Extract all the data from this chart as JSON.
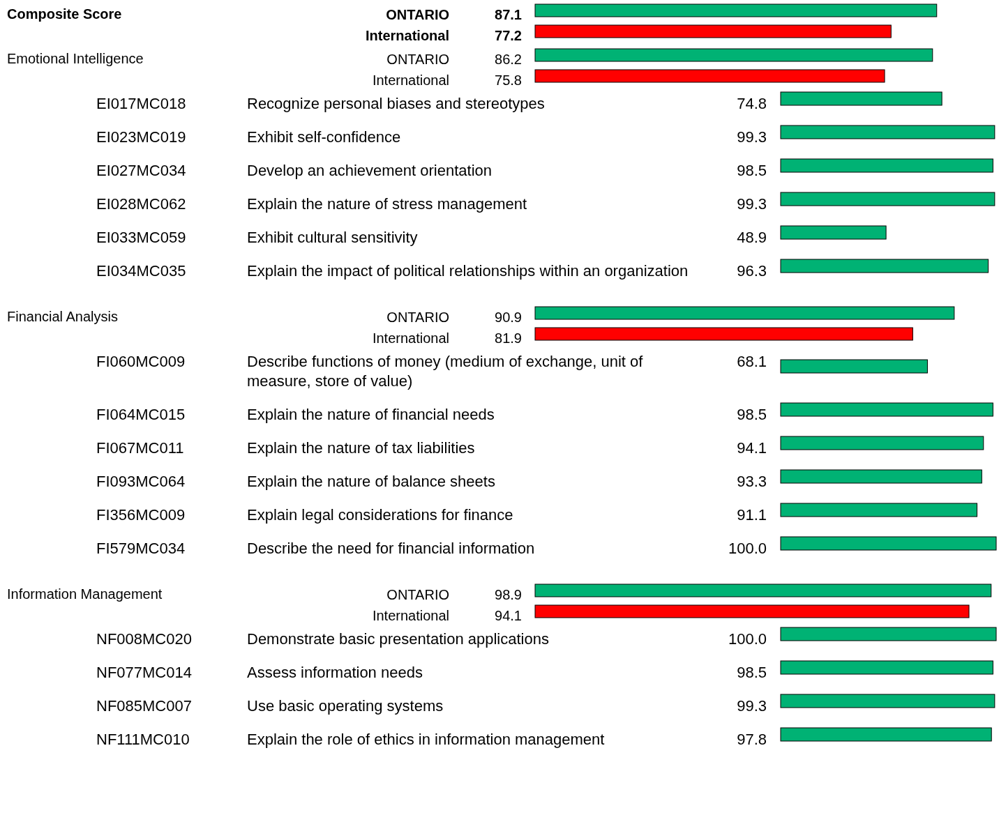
{
  "chart_data": [
    {
      "type": "bar",
      "orientation": "horizontal",
      "ylabel": "Composite Score",
      "categories": [
        "ONTARIO",
        "International"
      ],
      "values": [
        87.1,
        77.2
      ],
      "colors": [
        "#00b274",
        "#ff0000"
      ],
      "value_labels": [
        "87.1",
        "77.2"
      ]
    },
    {
      "type": "bar",
      "orientation": "horizontal",
      "ylabel": "Emotional Intelligence",
      "categories": [
        "ONTARIO",
        "International"
      ],
      "values": [
        86.2,
        75.8
      ],
      "colors": [
        "#00b274",
        "#ff0000"
      ],
      "value_labels": [
        "86.2",
        "75.8"
      ]
    },
    {
      "type": "bar",
      "orientation": "horizontal",
      "categories": [
        "Recognize personal biases and stereotypes",
        "Exhibit self-confidence",
        "Develop an achievement orientation",
        "Explain the nature of stress management",
        "Exhibit cultural sensitivity",
        "Explain the impact of political relationships within an organization"
      ],
      "values": [
        74.8,
        99.3,
        98.5,
        99.3,
        48.9,
        96.3
      ],
      "color": "#00b274",
      "value_labels": [
        "74.8",
        "99.3",
        "98.5",
        "99.3",
        "48.9",
        "96.3"
      ],
      "annotations": [
        "EI017MC018",
        "EI023MC019",
        "EI027MC034",
        "EI028MC062",
        "EI033MC059",
        "EI034MC035"
      ]
    },
    {
      "type": "bar",
      "orientation": "horizontal",
      "ylabel": "Financial Analysis",
      "categories": [
        "ONTARIO",
        "International"
      ],
      "values": [
        90.9,
        81.9
      ],
      "colors": [
        "#00b274",
        "#ff0000"
      ],
      "value_labels": [
        "90.9",
        "81.9"
      ]
    },
    {
      "type": "bar",
      "orientation": "horizontal",
      "categories": [
        "Describe functions of money (medium of exchange, unit of measure, store of value)",
        "Explain the nature of financial needs",
        "Explain the nature of tax liabilities",
        "Explain the nature of balance sheets",
        "Explain legal considerations for finance",
        "Describe the need for financial information"
      ],
      "values": [
        68.1,
        98.5,
        94.1,
        93.3,
        91.1,
        100.0
      ],
      "color": "#00b274",
      "value_labels": [
        "68.1",
        "98.5",
        "94.1",
        "93.3",
        "91.1",
        "100.0"
      ],
      "annotations": [
        "FI060MC009",
        "FI064MC015",
        "FI067MC011",
        "FI093MC064",
        "FI356MC009",
        "FI579MC034"
      ]
    },
    {
      "type": "bar",
      "orientation": "horizontal",
      "ylabel": "Information Management",
      "categories": [
        "ONTARIO",
        "International"
      ],
      "values": [
        98.9,
        94.1
      ],
      "colors": [
        "#00b274",
        "#ff0000"
      ],
      "value_labels": [
        "98.9",
        "94.1"
      ]
    },
    {
      "type": "bar",
      "orientation": "horizontal",
      "categories": [
        "Demonstrate basic presentation applications",
        "Assess information needs",
        "Use basic operating systems",
        "Explain the role of ethics in information management"
      ],
      "values": [
        100.0,
        98.5,
        99.3,
        97.8
      ],
      "color": "#00b274",
      "value_labels": [
        "100.0",
        "98.5",
        "99.3",
        "97.8"
      ],
      "annotations": [
        "NF008MC020",
        "NF077MC014",
        "NF085MC007",
        "NF111MC010"
      ]
    }
  ]
}
